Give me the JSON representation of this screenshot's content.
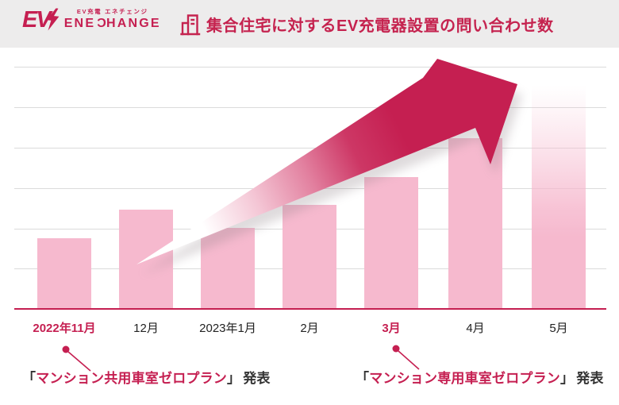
{
  "colors": {
    "accent_crimson": "#c51f51",
    "bar_pink": "#f6b9ce",
    "gridline_gray": "#dbdbdb",
    "text_dark": "#333333",
    "header_bg": "#edecec",
    "background": "#ffffff"
  },
  "header": {
    "logo": {
      "ev_text": "EV",
      "bolt_icon": "lightning-bolt",
      "tagline": "EV充電 エネチェンジ",
      "brand": "ENECHANGE",
      "brand_parts": [
        "ENE",
        "C",
        "HANGE"
      ]
    },
    "title_icon": "buildings",
    "title": "集合住宅に対するEV充電器設置の問い合わせ数"
  },
  "chart_data": {
    "type": "bar",
    "title": "集合住宅に対するEV充電器設置の問い合わせ数",
    "categories": [
      "2022年11月",
      "12月",
      "2023年1月",
      "2月",
      "3月",
      "4月",
      "5月"
    ],
    "values_relative": [
      89,
      125,
      102,
      131,
      166,
      215,
      282
    ],
    "value_axis": "none (no numeric scale shown; bar heights are relative)",
    "highlighted_categories": [
      "2022年11月",
      "3月"
    ],
    "last_bar_fades_upward": true,
    "grid": "horizontal gridlines, crimson baseline",
    "legend": "none",
    "trend_overlay": "large upward arrow from lower-left (white) to upper-right (crimson)"
  },
  "annotations": [
    {
      "attached_to": "2022年11月",
      "bracket_open": "「",
      "accent_text": "マンション共用車室ゼロプラン",
      "bracket_close": "」",
      "suffix": "発表"
    },
    {
      "attached_to": "3月",
      "bracket_open": "「",
      "accent_text": "マンション専用車室ゼロプラン",
      "bracket_close": "」",
      "suffix": "発表"
    }
  ]
}
